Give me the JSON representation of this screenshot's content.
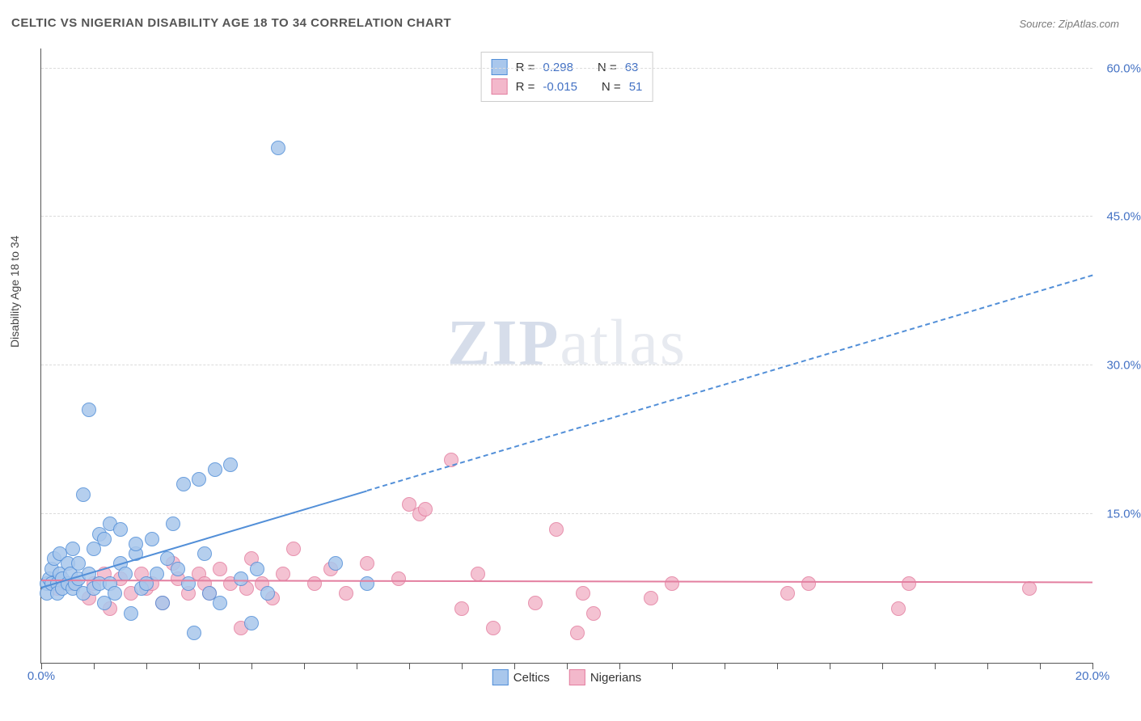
{
  "title": "CELTIC VS NIGERIAN DISABILITY AGE 18 TO 34 CORRELATION CHART",
  "source": "Source: ZipAtlas.com",
  "ylabel": "Disability Age 18 to 34",
  "watermark_bold": "ZIP",
  "watermark_rest": "atlas",
  "chart": {
    "type": "scatter",
    "background_color": "#ffffff",
    "grid_color": "#dcdcdc",
    "axis_color": "#555555",
    "xlim": [
      0,
      20
    ],
    "ylim": [
      0,
      62
    ],
    "x_minor_step": 1,
    "y_grid_values": [
      15,
      30,
      45,
      60
    ],
    "y_tick_labels": [
      "15.0%",
      "30.0%",
      "45.0%",
      "60.0%"
    ],
    "x_tick_values": [
      0,
      20
    ],
    "x_tick_labels": [
      "0.0%",
      "20.0%"
    ],
    "label_fontsize": 15,
    "label_color": "#4472c4",
    "point_radius": 9,
    "point_border_width": 1.5,
    "point_fill_opacity": 0.35
  },
  "series": {
    "celtics": {
      "name": "Celtics",
      "color_border": "#528fd8",
      "color_fill": "#a9c7ec",
      "R_label": "R =",
      "R": "0.298",
      "N_label": "N =",
      "N": "63",
      "trend": {
        "x1": 0,
        "y1": 7.5,
        "x2": 20,
        "y2": 39,
        "solid_until_x": 6.2,
        "dash": "6,5",
        "width": 2
      },
      "points": [
        [
          0.1,
          8.0
        ],
        [
          0.1,
          7.0
        ],
        [
          0.15,
          8.5
        ],
        [
          0.2,
          9.5
        ],
        [
          0.2,
          8.0
        ],
        [
          0.25,
          10.5
        ],
        [
          0.3,
          8.0
        ],
        [
          0.3,
          7.0
        ],
        [
          0.35,
          9.0
        ],
        [
          0.35,
          11.0
        ],
        [
          0.4,
          8.5
        ],
        [
          0.4,
          7.5
        ],
        [
          0.5,
          10.0
        ],
        [
          0.5,
          8.0
        ],
        [
          0.55,
          9.0
        ],
        [
          0.6,
          7.5
        ],
        [
          0.6,
          11.5
        ],
        [
          0.65,
          8.0
        ],
        [
          0.7,
          10.0
        ],
        [
          0.7,
          8.5
        ],
        [
          0.8,
          7.0
        ],
        [
          0.8,
          17.0
        ],
        [
          0.9,
          9.0
        ],
        [
          0.9,
          25.5
        ],
        [
          1.0,
          7.5
        ],
        [
          1.0,
          11.5
        ],
        [
          1.1,
          8.0
        ],
        [
          1.1,
          13.0
        ],
        [
          1.2,
          12.5
        ],
        [
          1.2,
          6.0
        ],
        [
          1.3,
          8.0
        ],
        [
          1.3,
          14.0
        ],
        [
          1.4,
          7.0
        ],
        [
          1.5,
          10.0
        ],
        [
          1.5,
          13.5
        ],
        [
          1.6,
          9.0
        ],
        [
          1.7,
          5.0
        ],
        [
          1.8,
          11.0
        ],
        [
          1.8,
          12.0
        ],
        [
          1.9,
          7.5
        ],
        [
          2.0,
          8.0
        ],
        [
          2.1,
          12.5
        ],
        [
          2.2,
          9.0
        ],
        [
          2.3,
          6.0
        ],
        [
          2.4,
          10.5
        ],
        [
          2.5,
          14.0
        ],
        [
          2.6,
          9.5
        ],
        [
          2.7,
          18.0
        ],
        [
          2.8,
          8.0
        ],
        [
          2.9,
          3.0
        ],
        [
          3.0,
          18.5
        ],
        [
          3.1,
          11.0
        ],
        [
          3.2,
          7.0
        ],
        [
          3.3,
          19.5
        ],
        [
          3.4,
          6.0
        ],
        [
          3.6,
          20.0
        ],
        [
          3.8,
          8.5
        ],
        [
          4.0,
          4.0
        ],
        [
          4.1,
          9.5
        ],
        [
          4.3,
          7.0
        ],
        [
          4.5,
          52.0
        ],
        [
          5.6,
          10.0
        ],
        [
          6.2,
          8.0
        ]
      ]
    },
    "nigerians": {
      "name": "Nigerians",
      "color_border": "#e37fa0",
      "color_fill": "#f3b8cb",
      "R_label": "R =",
      "R": "-0.015",
      "N_label": "N =",
      "N": "51",
      "trend": {
        "x1": 0,
        "y1": 8.2,
        "x2": 20,
        "y2": 8.0,
        "solid_until_x": 20,
        "dash": "none",
        "width": 2
      },
      "points": [
        [
          0.3,
          7.5
        ],
        [
          0.6,
          8.0
        ],
        [
          0.9,
          6.5
        ],
        [
          1.0,
          8.0
        ],
        [
          1.2,
          9.0
        ],
        [
          1.3,
          5.5
        ],
        [
          1.5,
          8.5
        ],
        [
          1.7,
          7.0
        ],
        [
          1.9,
          9.0
        ],
        [
          2.0,
          7.5
        ],
        [
          2.1,
          8.0
        ],
        [
          2.3,
          6.0
        ],
        [
          2.5,
          10.0
        ],
        [
          2.6,
          8.5
        ],
        [
          2.8,
          7.0
        ],
        [
          3.0,
          9.0
        ],
        [
          3.1,
          8.0
        ],
        [
          3.2,
          7.0
        ],
        [
          3.4,
          9.5
        ],
        [
          3.6,
          8.0
        ],
        [
          3.8,
          3.5
        ],
        [
          3.9,
          7.5
        ],
        [
          4.0,
          10.5
        ],
        [
          4.2,
          8.0
        ],
        [
          4.4,
          6.5
        ],
        [
          4.6,
          9.0
        ],
        [
          4.8,
          11.5
        ],
        [
          5.2,
          8.0
        ],
        [
          5.5,
          9.5
        ],
        [
          5.8,
          7.0
        ],
        [
          6.2,
          10.0
        ],
        [
          6.8,
          8.5
        ],
        [
          7.0,
          16.0
        ],
        [
          7.2,
          15.0
        ],
        [
          7.3,
          15.5
        ],
        [
          7.8,
          20.5
        ],
        [
          8.0,
          5.5
        ],
        [
          8.3,
          9.0
        ],
        [
          8.6,
          3.5
        ],
        [
          9.4,
          6.0
        ],
        [
          9.8,
          13.5
        ],
        [
          10.2,
          3.0
        ],
        [
          10.3,
          7.0
        ],
        [
          10.5,
          5.0
        ],
        [
          11.6,
          6.5
        ],
        [
          12.0,
          8.0
        ],
        [
          14.2,
          7.0
        ],
        [
          14.6,
          8.0
        ],
        [
          16.3,
          5.5
        ],
        [
          16.5,
          8.0
        ],
        [
          18.8,
          7.5
        ]
      ]
    }
  },
  "legend_bottom": [
    {
      "key": "celtics",
      "label": "Celtics"
    },
    {
      "key": "nigerians",
      "label": "Nigerians"
    }
  ]
}
